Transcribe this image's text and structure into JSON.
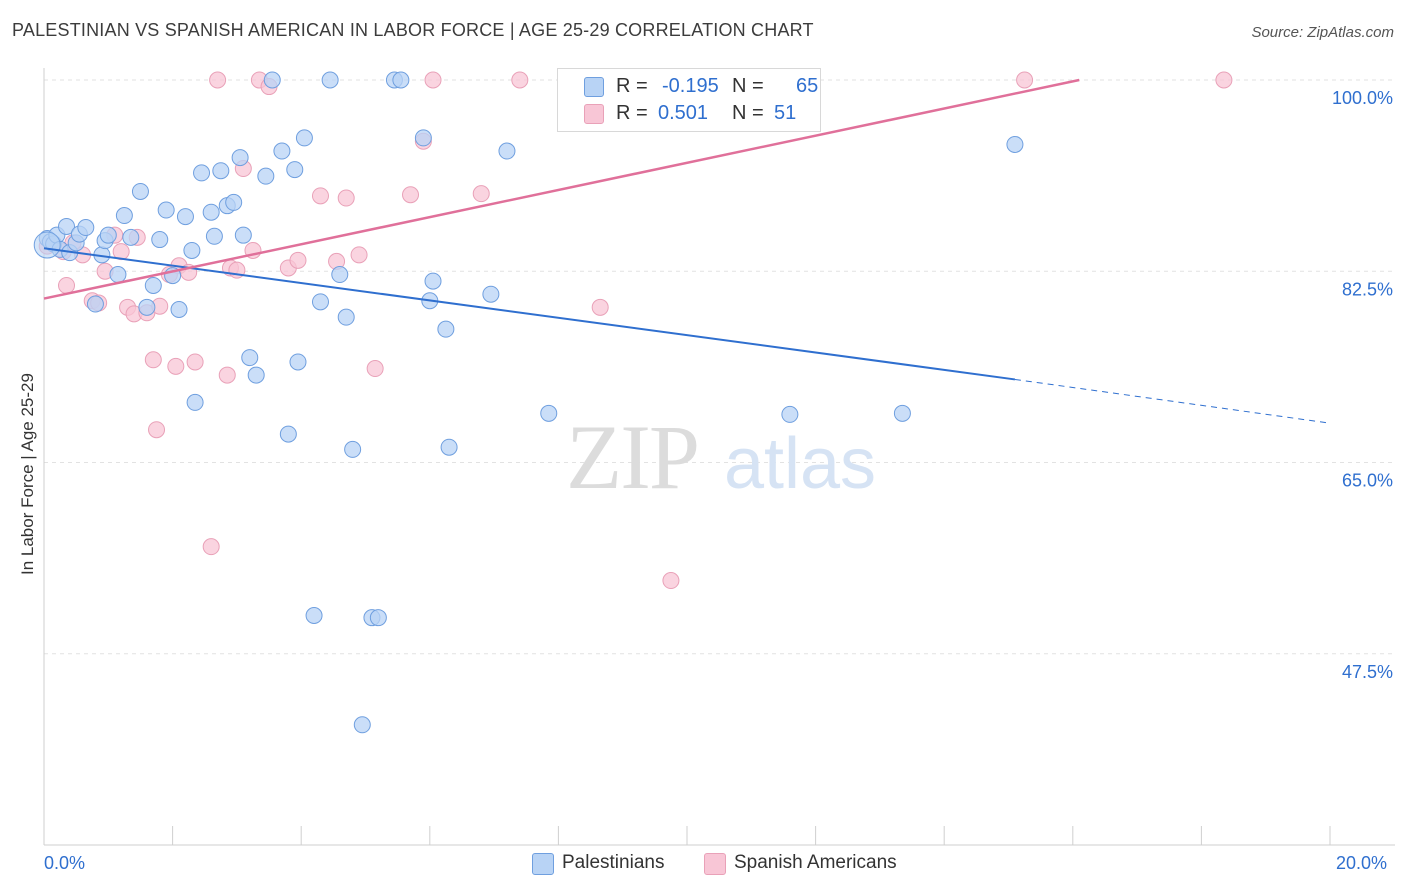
{
  "title": "PALESTINIAN VS SPANISH AMERICAN IN LABOR FORCE | AGE 25-29 CORRELATION CHART",
  "source": "Source: ZipAtlas.com",
  "watermark": {
    "zip": "ZIP",
    "atlas": "atlas"
  },
  "legend": {
    "rows": [
      {
        "r_label": "R =",
        "r_value": "-0.195",
        "n_label": "N =",
        "n_value": "65"
      },
      {
        "r_label": "R =",
        "r_value": "0.501",
        "n_label": "N =",
        "n_value": "51"
      }
    ]
  },
  "colors": {
    "blue_fill": "#b8d3f5",
    "blue_stroke": "#6f9fdf",
    "blue_line": "#2f6fcf",
    "pink_fill": "#f8c6d6",
    "pink_stroke": "#e9a1b8",
    "pink_line": "#e0709a",
    "grid": "#e2e2e2",
    "tick_text": "#2f6fcf"
  },
  "chart_data": {
    "type": "scatter",
    "title": "PALESTINIAN VS SPANISH AMERICAN IN LABOR FORCE | AGE 25-29 CORRELATION CHART",
    "xlabel": "",
    "ylabel": "In Labor Force | Age 25-29",
    "xlim": [
      0,
      20
    ],
    "ylim": [
      32,
      102
    ],
    "x_tick_labels": [
      "0.0%",
      "20.0%"
    ],
    "y_ticks": [
      47.5,
      65.0,
      82.5,
      100.0
    ],
    "y_tick_labels": [
      "47.5%",
      "65.0%",
      "82.5%",
      "100.0%"
    ],
    "grid": true,
    "series": [
      {
        "name": "Palestinians",
        "color": "#b8d3f5",
        "points": [
          [
            0.05,
            85.5
          ],
          [
            0.1,
            85.2
          ],
          [
            0.15,
            85.0
          ],
          [
            0.2,
            85.8
          ],
          [
            0.25,
            84.5
          ],
          [
            0.35,
            86.6
          ],
          [
            0.4,
            84.2
          ],
          [
            0.5,
            85.1
          ],
          [
            0.55,
            85.9
          ],
          [
            0.65,
            86.5
          ],
          [
            0.8,
            79.5
          ],
          [
            0.9,
            84.0
          ],
          [
            0.95,
            85.3
          ],
          [
            1.0,
            85.8
          ],
          [
            1.15,
            82.2
          ],
          [
            1.25,
            87.6
          ],
          [
            1.35,
            85.6
          ],
          [
            1.5,
            89.8
          ],
          [
            1.6,
            79.2
          ],
          [
            1.7,
            81.2
          ],
          [
            1.8,
            85.4
          ],
          [
            1.9,
            88.1
          ],
          [
            2.0,
            82.1
          ],
          [
            2.1,
            79.0
          ],
          [
            2.2,
            87.5
          ],
          [
            2.3,
            84.4
          ],
          [
            2.35,
            70.5
          ],
          [
            2.45,
            91.5
          ],
          [
            2.6,
            87.9
          ],
          [
            2.65,
            85.7
          ],
          [
            2.75,
            91.7
          ],
          [
            2.85,
            88.5
          ],
          [
            2.95,
            88.8
          ],
          [
            3.05,
            92.9
          ],
          [
            3.1,
            85.8
          ],
          [
            3.2,
            74.6
          ],
          [
            3.3,
            73.0
          ],
          [
            3.45,
            91.2
          ],
          [
            3.55,
            100.0
          ],
          [
            3.7,
            93.5
          ],
          [
            3.8,
            67.6
          ],
          [
            3.9,
            91.8
          ],
          [
            3.95,
            74.2
          ],
          [
            4.05,
            94.7
          ],
          [
            4.2,
            51.0
          ],
          [
            4.3,
            79.7
          ],
          [
            4.45,
            100.0
          ],
          [
            4.6,
            82.2
          ],
          [
            4.7,
            78.3
          ],
          [
            4.8,
            66.2
          ],
          [
            4.95,
            41.0
          ],
          [
            5.1,
            50.8
          ],
          [
            5.2,
            50.8
          ],
          [
            5.45,
            100.0
          ],
          [
            5.55,
            100.0
          ],
          [
            5.9,
            94.7
          ],
          [
            6.0,
            79.8
          ],
          [
            6.05,
            81.6
          ],
          [
            6.25,
            77.2
          ],
          [
            6.3,
            66.4
          ],
          [
            6.95,
            80.4
          ],
          [
            7.2,
            93.5
          ],
          [
            7.85,
            69.5
          ],
          [
            11.6,
            69.4
          ],
          [
            13.35,
            69.5
          ],
          [
            15.1,
            94.1
          ]
        ]
      },
      {
        "name": "Spanish Americans",
        "color": "#f8c6d6",
        "points": [
          [
            0.05,
            84.8
          ],
          [
            0.3,
            84.3
          ],
          [
            0.35,
            81.2
          ],
          [
            0.45,
            85.1
          ],
          [
            0.6,
            84.0
          ],
          [
            0.75,
            79.8
          ],
          [
            0.85,
            79.6
          ],
          [
            0.95,
            82.5
          ],
          [
            1.1,
            85.8
          ],
          [
            1.2,
            84.3
          ],
          [
            1.3,
            79.2
          ],
          [
            1.4,
            78.6
          ],
          [
            1.45,
            85.6
          ],
          [
            1.6,
            78.7
          ],
          [
            1.7,
            74.4
          ],
          [
            1.75,
            68.0
          ],
          [
            1.8,
            79.3
          ],
          [
            1.95,
            82.2
          ],
          [
            2.05,
            73.8
          ],
          [
            2.1,
            83.0
          ],
          [
            2.25,
            82.4
          ],
          [
            2.35,
            74.2
          ],
          [
            2.6,
            57.3
          ],
          [
            2.7,
            100.0
          ],
          [
            2.85,
            73.0
          ],
          [
            2.9,
            82.8
          ],
          [
            3.0,
            82.6
          ],
          [
            3.1,
            91.9
          ],
          [
            3.25,
            84.4
          ],
          [
            3.35,
            100.0
          ],
          [
            3.5,
            99.4
          ],
          [
            3.8,
            82.8
          ],
          [
            3.95,
            83.5
          ],
          [
            4.3,
            89.4
          ],
          [
            4.55,
            83.4
          ],
          [
            4.7,
            89.2
          ],
          [
            4.9,
            84.0
          ],
          [
            5.15,
            73.6
          ],
          [
            5.7,
            89.5
          ],
          [
            5.9,
            94.4
          ],
          [
            6.05,
            100.0
          ],
          [
            6.8,
            89.6
          ],
          [
            7.4,
            100.0
          ],
          [
            8.55,
            100.0
          ],
          [
            8.65,
            79.2
          ],
          [
            9.45,
            100.0
          ],
          [
            9.75,
            54.2
          ],
          [
            10.05,
            100.0
          ],
          [
            11.0,
            100.0
          ],
          [
            15.25,
            100.0
          ],
          [
            18.35,
            100.0
          ]
        ]
      }
    ],
    "trendlines": [
      {
        "series": "Palestinians",
        "x_start": 0.0,
        "y_start": 84.6,
        "x_solid_end": 15.1,
        "y_solid_end": 72.6,
        "x_end": 20.0,
        "y_end": 68.6,
        "dashed_after_solid": true
      },
      {
        "series": "Spanish Americans",
        "x_start": 0.0,
        "y_start": 80.0,
        "x_end": 16.1,
        "y_end": 100.0,
        "dashed_after_solid": false
      }
    ]
  }
}
